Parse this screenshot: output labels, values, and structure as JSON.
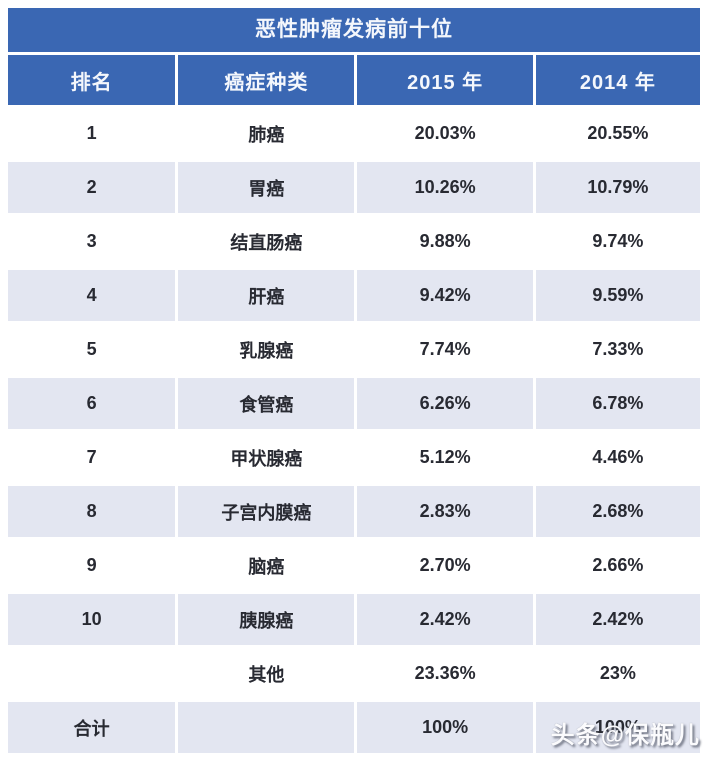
{
  "title": "恶性肿瘤发病前十位",
  "columns": [
    "排名",
    "癌症种类",
    "2015 年",
    "2014 年"
  ],
  "rows": [
    {
      "rank": "1",
      "type": "肺癌",
      "y2015": "20.03%",
      "y2014": "20.55%"
    },
    {
      "rank": "2",
      "type": "胃癌",
      "y2015": "10.26%",
      "y2014": "10.79%"
    },
    {
      "rank": "3",
      "type": "结直肠癌",
      "y2015": "9.88%",
      "y2014": "9.74%"
    },
    {
      "rank": "4",
      "type": "肝癌",
      "y2015": "9.42%",
      "y2014": "9.59%"
    },
    {
      "rank": "5",
      "type": "乳腺癌",
      "y2015": "7.74%",
      "y2014": "7.33%"
    },
    {
      "rank": "6",
      "type": "食管癌",
      "y2015": "6.26%",
      "y2014": "6.78%"
    },
    {
      "rank": "7",
      "type": "甲状腺癌",
      "y2015": "5.12%",
      "y2014": "4.46%"
    },
    {
      "rank": "8",
      "type": "子宫内膜癌",
      "y2015": "2.83%",
      "y2014": "2.68%"
    },
    {
      "rank": "9",
      "type": "脑癌",
      "y2015": "2.70%",
      "y2014": "2.66%"
    },
    {
      "rank": "10",
      "type": "胰腺癌",
      "y2015": "2.42%",
      "y2014": "2.42%"
    },
    {
      "rank": "",
      "type": "其他",
      "y2015": "23.36%",
      "y2014": "23%"
    },
    {
      "rank": "合计",
      "type": "",
      "y2015": "100%",
      "y2014": "100%"
    }
  ],
  "watermark": "头条@保瓶儿",
  "colors": {
    "header_blue": "#3a67b3",
    "row_shade": "#e3e6f1",
    "text_dark": "#282a32",
    "header_text": "#f4f7fc"
  },
  "chart_data": {
    "type": "table",
    "title": "恶性肿瘤发病前十位",
    "columns": [
      "排名",
      "癌症种类",
      "2015 年",
      "2014 年"
    ],
    "categories": [
      "肺癌",
      "胃癌",
      "结直肠癌",
      "肝癌",
      "乳腺癌",
      "食管癌",
      "甲状腺癌",
      "子宫内膜癌",
      "脑癌",
      "胰腺癌",
      "其他",
      "合计"
    ],
    "series": [
      {
        "name": "2015 年",
        "values": [
          20.03,
          10.26,
          9.88,
          9.42,
          7.74,
          6.26,
          5.12,
          2.83,
          2.7,
          2.42,
          23.36,
          100
        ]
      },
      {
        "name": "2014 年",
        "values": [
          20.55,
          10.79,
          9.74,
          9.59,
          7.33,
          6.78,
          4.46,
          2.68,
          2.66,
          2.42,
          23,
          100
        ]
      }
    ],
    "legend_position": "none",
    "grid": false
  }
}
